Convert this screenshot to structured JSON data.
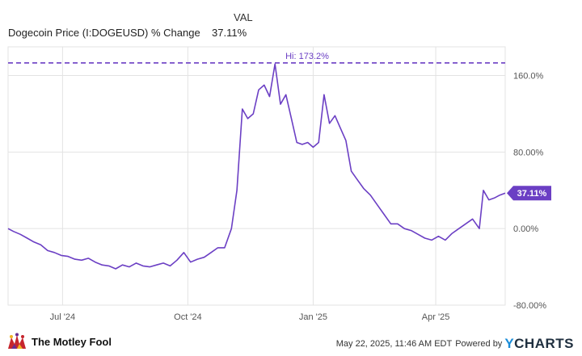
{
  "legend": {
    "header": "VAL",
    "series_name": "Dogecoin Price (I:DOGEUSD) % Change",
    "series_value": "37.11%"
  },
  "footer": {
    "brand": "The Motley Fool",
    "timestamp": "May 22, 2025, 11:46 AM EDT",
    "powered_by": "Powered by",
    "provider_prefix": "Y",
    "provider_rest": "CHARTS"
  },
  "colors": {
    "series": "#6b3fc4",
    "grid": "#e3e3e3",
    "axis_text": "#555555",
    "yc_blue": "#1a8cd8"
  },
  "chart_data": {
    "type": "line",
    "title": "",
    "xlabel": "",
    "ylabel": "",
    "ylim": [
      -80,
      190
    ],
    "xlim": [
      "2024-05-22",
      "2025-05-22"
    ],
    "x_ticks": [
      {
        "date": "2024-07-01",
        "label": "Jul '24"
      },
      {
        "date": "2024-10-01",
        "label": "Oct '24"
      },
      {
        "date": "2025-01-01",
        "label": "Jan '25"
      },
      {
        "date": "2025-04-01",
        "label": "Apr '25"
      }
    ],
    "y_ticks": [
      {
        "value": 160,
        "label": "160.0%"
      },
      {
        "value": 80,
        "label": "80.00%"
      },
      {
        "value": 0,
        "label": "0.00%"
      },
      {
        "value": -80,
        "label": "-80.00%"
      }
    ],
    "grid": true,
    "reference_line": {
      "value": 173.2,
      "label": "Hi: 173.2%"
    },
    "last_value_label": "37.11%",
    "series": [
      {
        "name": "Dogecoin Price (I:DOGEUSD) % Change",
        "x": [
          "2024-05-22",
          "2024-05-26",
          "2024-05-31",
          "2024-06-05",
          "2024-06-10",
          "2024-06-15",
          "2024-06-20",
          "2024-06-25",
          "2024-06-30",
          "2024-07-05",
          "2024-07-10",
          "2024-07-15",
          "2024-07-20",
          "2024-07-25",
          "2024-07-30",
          "2024-08-04",
          "2024-08-09",
          "2024-08-14",
          "2024-08-19",
          "2024-08-24",
          "2024-08-29",
          "2024-09-03",
          "2024-09-08",
          "2024-09-13",
          "2024-09-18",
          "2024-09-23",
          "2024-09-28",
          "2024-10-03",
          "2024-10-08",
          "2024-10-13",
          "2024-10-18",
          "2024-10-23",
          "2024-10-28",
          "2024-11-02",
          "2024-11-06",
          "2024-11-10",
          "2024-11-14",
          "2024-11-18",
          "2024-11-22",
          "2024-11-26",
          "2024-11-30",
          "2024-12-04",
          "2024-12-08",
          "2024-12-12",
          "2024-12-16",
          "2024-12-20",
          "2024-12-24",
          "2024-12-28",
          "2025-01-01",
          "2025-01-05",
          "2025-01-09",
          "2025-01-13",
          "2025-01-17",
          "2025-01-21",
          "2025-01-25",
          "2025-01-29",
          "2025-02-02",
          "2025-02-07",
          "2025-02-12",
          "2025-02-17",
          "2025-02-22",
          "2025-02-27",
          "2025-03-04",
          "2025-03-09",
          "2025-03-14",
          "2025-03-19",
          "2025-03-24",
          "2025-03-29",
          "2025-04-03",
          "2025-04-08",
          "2025-04-13",
          "2025-04-18",
          "2025-04-23",
          "2025-04-28",
          "2025-05-03",
          "2025-05-06",
          "2025-05-10",
          "2025-05-14",
          "2025-05-18",
          "2025-05-22"
        ],
        "y": [
          0,
          -3,
          -6,
          -10,
          -14,
          -17,
          -23,
          -25,
          -28,
          -29,
          -32,
          -33,
          -31,
          -35,
          -38,
          -39,
          -42,
          -38,
          -40,
          -36,
          -39,
          -40,
          -38,
          -36,
          -39,
          -33,
          -25,
          -35,
          -32,
          -30,
          -25,
          -20,
          -20,
          0,
          40,
          125,
          115,
          120,
          145,
          150,
          138,
          172,
          130,
          140,
          115,
          90,
          88,
          90,
          85,
          90,
          140,
          110,
          118,
          105,
          92,
          60,
          52,
          42,
          35,
          25,
          15,
          5,
          5,
          0,
          -2,
          -6,
          -10,
          -12,
          -8,
          -12,
          -5,
          0,
          5,
          10,
          0,
          40,
          30,
          32,
          35,
          37.11
        ]
      }
    ]
  }
}
